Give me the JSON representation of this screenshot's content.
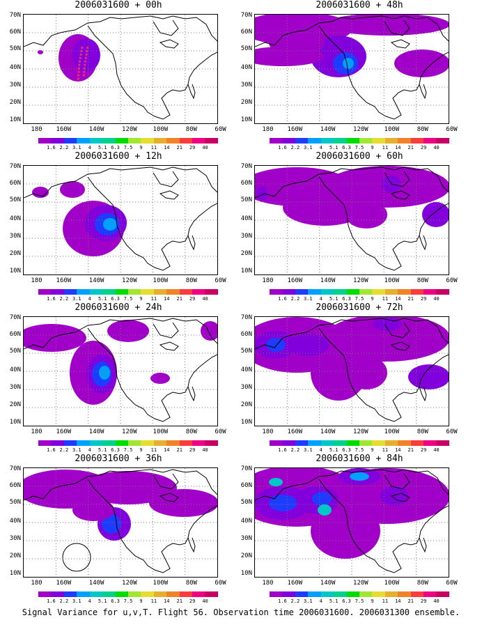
{
  "panels": [
    {
      "title": "2006031600 + 00h",
      "variant": 0
    },
    {
      "title": "2006031600 + 12h",
      "variant": 1
    },
    {
      "title": "2006031600 + 24h",
      "variant": 2
    },
    {
      "title": "2006031600 + 36h",
      "variant": 3
    },
    {
      "title": "2006031600 + 48h",
      "variant": 4
    },
    {
      "title": "2006031600 + 60h",
      "variant": 5
    },
    {
      "title": "2006031600 + 72h",
      "variant": 6
    },
    {
      "title": "2006031600 + 84h",
      "variant": 7
    }
  ],
  "y_ticks": [
    "70N",
    "60N",
    "50N",
    "40N",
    "30N",
    "20N",
    "10N"
  ],
  "x_ticks": [
    "180",
    "160W",
    "140W",
    "120W",
    "100W",
    "80W",
    "60W"
  ],
  "colorbar": {
    "labels": [
      "1.6",
      "2.2",
      "3.1",
      "4",
      "5.1",
      "6.3",
      "7.5",
      "9",
      "11",
      "14",
      "21",
      "29",
      "40"
    ],
    "colors": [
      "#a000c8",
      "#8200dc",
      "#1e3cff",
      "#00a0ff",
      "#00c8c8",
      "#00d28c",
      "#00dc00",
      "#a0e632",
      "#e6dc32",
      "#e6af2d",
      "#f08228",
      "#fa3c3c",
      "#f00082",
      "#c80064"
    ]
  },
  "caption": "Signal Variance for u,v,T. Flight 56. Observation time 2006031600. 2006031300 ensemble."
}
